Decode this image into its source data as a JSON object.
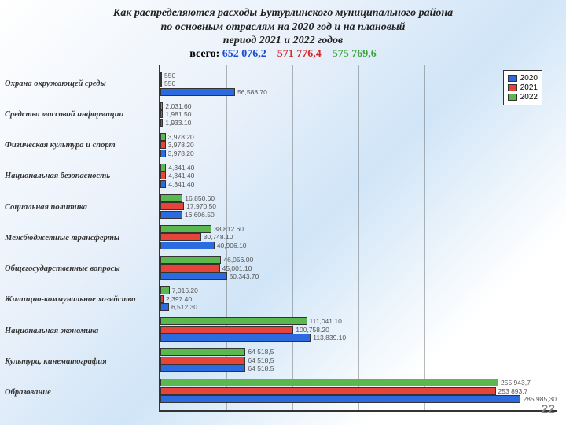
{
  "title": {
    "line1": "Как распределяются расходы Бутурлинского муниципального района",
    "line2": "по основным отраслям на 2020 год и на плановый",
    "line3": "период 2021 и 2022 годов",
    "totals_label": "всего:",
    "total_a": "652 076,2",
    "total_b": "571 776,4",
    "total_c": "575 769,6",
    "color_a": "#1a4fd1",
    "color_b": "#d12a2a",
    "color_c": "#3aa33a",
    "fontsize": 14
  },
  "chart": {
    "type": "bar",
    "orientation": "horizontal",
    "xmax": 300000,
    "grid_lines": [
      50000,
      100000,
      150000,
      200000,
      250000,
      300000
    ],
    "grid_color": "rgba(80,80,80,0.4)",
    "series": [
      {
        "name": "2022",
        "color": "#5bb84e"
      },
      {
        "name": "2021",
        "color": "#e6443a"
      },
      {
        "name": "2020",
        "color": "#2b6adf"
      }
    ],
    "legend_order": [
      "2020",
      "2021",
      "2022"
    ],
    "categories": [
      {
        "label": "Охрана окружающей среды",
        "values": [
          550,
          550,
          56588.7
        ],
        "display": [
          "550",
          "550",
          "56,588.70"
        ]
      },
      {
        "label": "Средства массовой информации",
        "values": [
          2031.6,
          1981.5,
          1933.1
        ],
        "display": [
          "2,031.60",
          "1,981.50",
          "1,933.10"
        ]
      },
      {
        "label": "Физическая культура и спорт",
        "values": [
          3978.2,
          3978.2,
          3978.2
        ],
        "display": [
          "3,978.20",
          "3,978.20",
          "3,978.20"
        ]
      },
      {
        "label": "Национальная безопасность",
        "values": [
          4341.4,
          4341.4,
          4341.4
        ],
        "display": [
          "4,341.40",
          "4,341.40",
          "4,341.40"
        ]
      },
      {
        "label": "Социальная политика",
        "values": [
          16850.6,
          17970.5,
          16606.5
        ],
        "display": [
          "16,850.60",
          "17,970.50",
          "16,606.50"
        ]
      },
      {
        "label": "Межбюджетные трансферты",
        "values": [
          38812.6,
          30748.1,
          40906.1
        ],
        "display": [
          "38,812.60",
          "30,748.10",
          "40,906.10"
        ]
      },
      {
        "label": "Общегосударственные вопросы",
        "values": [
          46056.0,
          45001.1,
          50343.7
        ],
        "display": [
          "46,056.00",
          "45,001.10",
          "50,343.70"
        ]
      },
      {
        "label": "Жилищно-коммунальное хозяйство",
        "values": [
          7016.2,
          2397.4,
          6512.3
        ],
        "display": [
          "7,016.20",
          "2,397.40",
          "6,512.30"
        ]
      },
      {
        "label": "Национальная экономика",
        "values": [
          111041.1,
          100758.2,
          113839.1
        ],
        "display": [
          "111,041.10",
          "100,758.20",
          "113,839.10"
        ]
      },
      {
        "label": "Культура, кинематография",
        "values": [
          64518.5,
          64518.5,
          64518.5
        ],
        "display": [
          "64 518,5",
          "64 518,5",
          "64 518,5"
        ]
      },
      {
        "label": "Образование",
        "values": [
          255943.7,
          253893.7,
          285985.3
        ],
        "display": [
          "255 943,7",
          "253 893,7",
          "285 985,30"
        ]
      }
    ],
    "label_fontsize": 10.5,
    "value_fontsize": 8.5,
    "axis_color": "#333"
  },
  "page_number": "22"
}
